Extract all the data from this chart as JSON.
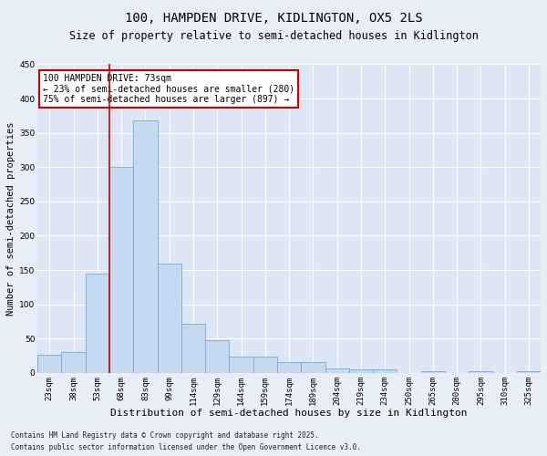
{
  "title1": "100, HAMPDEN DRIVE, KIDLINGTON, OX5 2LS",
  "title2": "Size of property relative to semi-detached houses in Kidlington",
  "xlabel": "Distribution of semi-detached houses by size in Kidlington",
  "ylabel": "Number of semi-detached properties",
  "footnote1": "Contains HM Land Registry data © Crown copyright and database right 2025.",
  "footnote2": "Contains public sector information licensed under the Open Government Licence v3.0.",
  "bin_labels": [
    "23sqm",
    "38sqm",
    "53sqm",
    "68sqm",
    "83sqm",
    "99sqm",
    "114sqm",
    "129sqm",
    "144sqm",
    "159sqm",
    "174sqm",
    "189sqm",
    "204sqm",
    "219sqm",
    "234sqm",
    "250sqm",
    "265sqm",
    "280sqm",
    "295sqm",
    "310sqm",
    "325sqm"
  ],
  "bar_values": [
    27,
    30,
    145,
    300,
    368,
    160,
    72,
    48,
    24,
    24,
    16,
    16,
    6,
    5,
    5,
    0,
    2,
    0,
    2,
    0,
    2
  ],
  "bar_color": "#c5d9f1",
  "bar_edge_color": "#7da6d4",
  "vline_bin": 3,
  "vline_color": "#cc0000",
  "annotation_text": "100 HAMPDEN DRIVE: 73sqm\n← 23% of semi-detached houses are smaller (280)\n75% of semi-detached houses are larger (897) →",
  "annotation_box_color": "#ffffff",
  "annotation_box_edge": "#cc0000",
  "ylim": [
    0,
    450
  ],
  "yticks": [
    0,
    50,
    100,
    150,
    200,
    250,
    300,
    350,
    400,
    450
  ],
  "background_color": "#e8eef7",
  "plot_bg_color": "#dce6f5",
  "grid_color": "#ffffff",
  "title1_fontsize": 10,
  "title2_fontsize": 8.5,
  "xlabel_fontsize": 8,
  "ylabel_fontsize": 7.5,
  "tick_fontsize": 6.5,
  "annotation_fontsize": 7,
  "footnote_fontsize": 5.5
}
